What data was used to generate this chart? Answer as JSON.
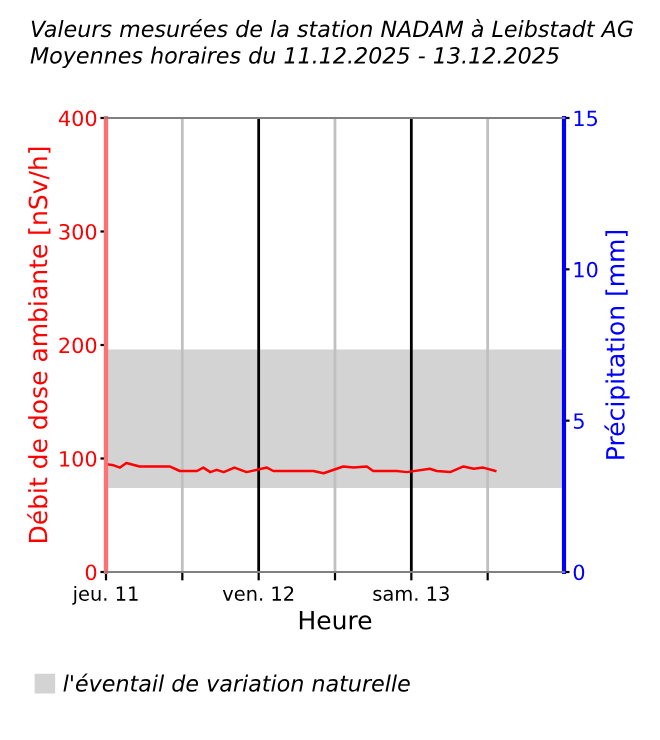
{
  "chart_data": {
    "type": "line",
    "title": "Valeurs mesurées de la station NADAM à Leibstadt AG\nMoyennes horaires du 11.12.2025 - 13.12.2025",
    "xlabel": "Heure",
    "ylabel": "Débit de dose ambiante [nSv/h]",
    "y2label": "Précipitation [mm]",
    "x": [
      "2025-12-11T00:06",
      "2025-12-11T01:12",
      "2025-12-11T02:12",
      "2025-12-11T03:12",
      "2025-12-11T05:18",
      "2025-12-11T10:00",
      "2025-12-11T11:36",
      "2025-12-11T14:18",
      "2025-12-11T15:18",
      "2025-12-11T16:24",
      "2025-12-11T17:24",
      "2025-12-11T18:30",
      "2025-12-11T20:12",
      "2025-12-11T22:06",
      "2025-12-12T01:18",
      "2025-12-12T02:18",
      "2025-12-12T08:36",
      "2025-12-12T10:12",
      "2025-12-12T13:18",
      "2025-12-12T14:54",
      "2025-12-12T17:00",
      "2025-12-12T18:00",
      "2025-12-12T21:42",
      "2025-12-12T23:18",
      "2025-12-13T02:54",
      "2025-12-13T04:00",
      "2025-12-13T06:06",
      "2025-12-13T08:12",
      "2025-12-13T09:48",
      "2025-12-13T11:18",
      "2025-12-13T13:12"
    ],
    "series": [
      {
        "color": "#ff0000",
        "values": [
          95,
          94,
          92,
          96,
          93,
          93,
          89,
          89,
          92,
          88,
          90,
          88,
          92,
          88,
          92,
          89,
          89,
          87,
          93,
          92,
          93,
          89,
          89,
          88,
          91,
          89,
          88,
          93,
          91,
          92,
          89
        ]
      }
    ],
    "xlim": [
      "2025-12-11T00:00",
      "2025-12-14T00:00"
    ],
    "xticks": [
      {
        "value": "2025-12-11T00:00",
        "label": "jeu. 11"
      },
      {
        "value": "2025-12-11T12:00",
        "label": null
      },
      {
        "value": "2025-12-12T00:00",
        "label": "ven. 12"
      },
      {
        "value": "2025-12-12T12:00",
        "label": null
      },
      {
        "value": "2025-12-13T00:00",
        "label": "sam. 13"
      },
      {
        "value": "2025-12-13T12:00",
        "label": null
      }
    ],
    "ylim": [
      0,
      400
    ],
    "yticks": [
      0,
      100,
      200,
      300,
      400
    ],
    "y2lim": [
      0,
      15
    ],
    "y2ticks": [
      0,
      5,
      10,
      15
    ],
    "bands": [
      {
        "axis": "y",
        "from": 74,
        "to": 196,
        "label": "l'éventail de variation naturelle",
        "color": "#d3d3d3"
      }
    ],
    "grid": "x",
    "legend": "bottom",
    "marker": "none",
    "line_style": "solid"
  }
}
